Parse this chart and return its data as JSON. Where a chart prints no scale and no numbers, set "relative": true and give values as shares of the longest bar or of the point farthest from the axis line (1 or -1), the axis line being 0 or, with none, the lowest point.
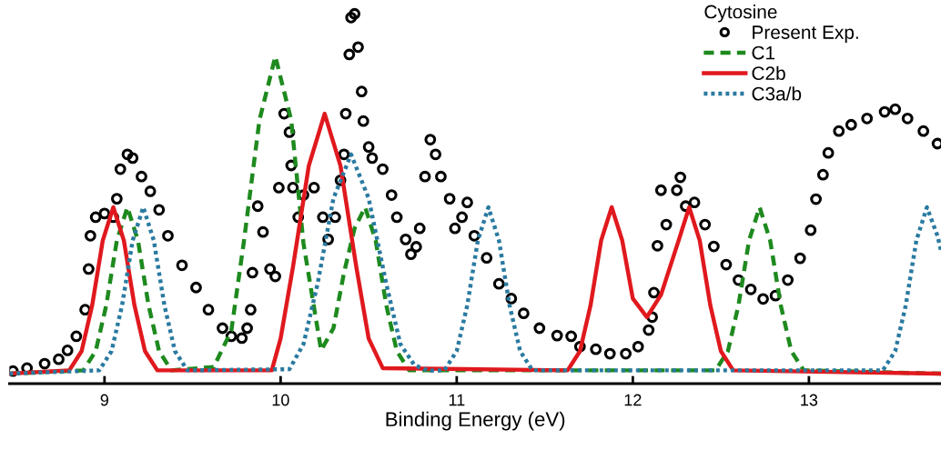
{
  "chart_data": {
    "type": "line",
    "relative": true,
    "xlabel": "Binding Energy (eV)",
    "legend_title": "Cytosine",
    "legend": "top right",
    "grid": false,
    "tick_labels": "x",
    "xlim": [
      8.46,
      13.75
    ],
    "xticks": [
      9,
      10,
      11,
      12,
      13
    ],
    "series": [
      {
        "name": "Present Exp.",
        "type": "scatter",
        "marker": "circle",
        "color": "#000000",
        "x": [
          8.48,
          8.56,
          8.66,
          8.74,
          8.79,
          8.84,
          8.89,
          8.91,
          8.92,
          8.95,
          9.0,
          9.05,
          9.07,
          9.09,
          9.13,
          9.16,
          9.21,
          9.26,
          9.31,
          9.36,
          9.44,
          9.52,
          9.59,
          9.67,
          9.72,
          9.78,
          9.81,
          9.83,
          9.84,
          9.87,
          9.9,
          9.94,
          9.97,
          9.99,
          10.02,
          10.05,
          10.06,
          10.07,
          10.1,
          10.13,
          10.19,
          10.24,
          10.27,
          10.31,
          10.34,
          10.36,
          10.37,
          10.39,
          10.4,
          10.42,
          10.44,
          10.46,
          10.47,
          10.5,
          10.52,
          10.58,
          10.63,
          10.66,
          10.71,
          10.74,
          10.77,
          10.79,
          10.82,
          10.85,
          10.88,
          10.91,
          10.96,
          10.99,
          11.03,
          11.06,
          11.1,
          11.17,
          11.24,
          11.31,
          11.38,
          11.47,
          11.57,
          11.65,
          11.7,
          11.79,
          11.87,
          11.96,
          12.03,
          12.09,
          12.11,
          12.12,
          12.14,
          12.16,
          12.19,
          12.25,
          12.27,
          12.3,
          12.35,
          12.41,
          12.46,
          12.53,
          12.6,
          12.67,
          12.74,
          12.81,
          12.88,
          12.95,
          13.01,
          13.04,
          13.08,
          13.11,
          13.17,
          13.24,
          13.33,
          13.43,
          13.49,
          13.56,
          13.65,
          13.73
        ],
        "values": [
          0.034,
          0.042,
          0.054,
          0.066,
          0.09,
          0.128,
          0.2,
          0.31,
          0.4,
          0.45,
          0.46,
          0.45,
          0.5,
          0.58,
          0.62,
          0.61,
          0.56,
          0.52,
          0.47,
          0.4,
          0.32,
          0.26,
          0.2,
          0.15,
          0.128,
          0.123,
          0.15,
          0.2,
          0.3,
          0.48,
          0.41,
          0.31,
          0.29,
          0.53,
          0.73,
          0.68,
          0.59,
          0.53,
          0.45,
          0.51,
          0.53,
          0.45,
          0.39,
          0.45,
          0.55,
          0.62,
          0.73,
          0.89,
          0.99,
          1.0,
          0.91,
          0.79,
          0.71,
          0.64,
          0.61,
          0.58,
          0.51,
          0.45,
          0.39,
          0.35,
          0.37,
          0.42,
          0.56,
          0.66,
          0.62,
          0.56,
          0.5,
          0.42,
          0.45,
          0.49,
          0.4,
          0.34,
          0.27,
          0.23,
          0.19,
          0.15,
          0.13,
          0.128,
          0.1,
          0.093,
          0.081,
          0.081,
          0.1,
          0.145,
          0.18,
          0.246,
          0.373,
          0.523,
          0.43,
          0.523,
          0.558,
          0.48,
          0.49,
          0.43,
          0.371,
          0.322,
          0.28,
          0.255,
          0.229,
          0.238,
          0.28,
          0.339,
          0.415,
          0.499,
          0.565,
          0.624,
          0.683,
          0.7,
          0.717,
          0.735,
          0.742,
          0.717,
          0.683,
          0.649
        ]
      },
      {
        "name": "C1",
        "line_style": "dashed",
        "color": "#1e8a1e",
        "x": [
          8.46,
          8.88,
          8.95,
          9.01,
          9.07,
          9.13,
          9.19,
          9.25,
          9.31,
          9.38,
          9.62,
          9.72,
          9.79,
          9.88,
          9.97,
          10.06,
          10.13,
          10.23,
          10.3,
          10.36,
          10.42,
          10.48,
          10.54,
          10.6,
          10.66,
          10.73,
          12.47,
          12.54,
          12.6,
          12.66,
          12.72,
          12.78,
          12.84,
          12.9,
          12.97,
          13.75
        ],
        "values": [
          0.027,
          0.036,
          0.088,
          0.212,
          0.387,
          0.477,
          0.387,
          0.212,
          0.088,
          0.036,
          0.045,
          0.143,
          0.379,
          0.713,
          0.885,
          0.713,
          0.379,
          0.09,
          0.15,
          0.3,
          0.42,
          0.477,
          0.387,
          0.212,
          0.088,
          0.036,
          0.036,
          0.088,
          0.212,
          0.387,
          0.477,
          0.387,
          0.212,
          0.088,
          0.036,
          0.027
        ]
      },
      {
        "name": "C2b",
        "line_style": "solid",
        "color": "#e0191e",
        "x": [
          8.46,
          8.8,
          8.87,
          8.93,
          8.99,
          9.05,
          9.11,
          9.17,
          9.23,
          9.3,
          9.95,
          10.0,
          10.07,
          10.16,
          10.25,
          10.34,
          10.43,
          10.5,
          10.58,
          11.63,
          11.7,
          11.76,
          11.82,
          11.88,
          11.94,
          12.0,
          12.08,
          12.16,
          12.26,
          12.32,
          12.38,
          12.44,
          12.5,
          12.57,
          13.75
        ],
        "values": [
          0.027,
          0.036,
          0.088,
          0.212,
          0.387,
          0.477,
          0.387,
          0.212,
          0.088,
          0.036,
          0.036,
          0.122,
          0.315,
          0.589,
          0.73,
          0.589,
          0.315,
          0.122,
          0.042,
          0.036,
          0.088,
          0.212,
          0.387,
          0.477,
          0.387,
          0.23,
          0.18,
          0.24,
          0.387,
          0.477,
          0.387,
          0.212,
          0.088,
          0.036,
          0.027
        ]
      },
      {
        "name": "C3a/b",
        "line_style": "dotted",
        "color": "#2a7aa0",
        "x": [
          8.46,
          8.97,
          9.04,
          9.1,
          9.16,
          9.22,
          9.28,
          9.34,
          9.4,
          9.47,
          10.05,
          10.13,
          10.21,
          10.3,
          10.4,
          10.5,
          10.6,
          10.68,
          10.76,
          10.84,
          10.93,
          11.0,
          11.06,
          11.12,
          11.18,
          11.24,
          11.3,
          11.36,
          11.43,
          13.42,
          13.49,
          13.55,
          13.61,
          13.67,
          13.73,
          13.75
        ],
        "values": [
          0.027,
          0.036,
          0.088,
          0.212,
          0.387,
          0.477,
          0.387,
          0.212,
          0.088,
          0.036,
          0.039,
          0.107,
          0.27,
          0.501,
          0.62,
          0.501,
          0.27,
          0.107,
          0.05,
          0.035,
          0.036,
          0.088,
          0.212,
          0.387,
          0.477,
          0.387,
          0.212,
          0.088,
          0.036,
          0.036,
          0.088,
          0.212,
          0.387,
          0.477,
          0.4,
          0.36
        ]
      }
    ]
  }
}
